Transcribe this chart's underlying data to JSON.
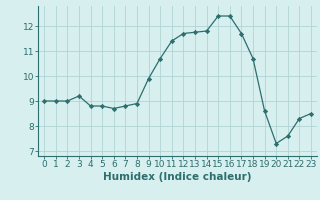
{
  "x": [
    0,
    1,
    2,
    3,
    4,
    5,
    6,
    7,
    8,
    9,
    10,
    11,
    12,
    13,
    14,
    15,
    16,
    17,
    18,
    19,
    20,
    21,
    22,
    23
  ],
  "y": [
    9.0,
    9.0,
    9.0,
    9.2,
    8.8,
    8.8,
    8.7,
    8.8,
    8.9,
    9.9,
    10.7,
    11.4,
    11.7,
    11.75,
    11.8,
    12.4,
    12.4,
    11.7,
    10.7,
    8.6,
    7.3,
    7.6,
    8.3,
    8.5
  ],
  "line_color": "#2d6e6e",
  "marker": "D",
  "marker_size": 2.2,
  "bg_color": "#d8efef",
  "grid_color": "#b0d4d4",
  "xlabel": "Humidex (Indice chaleur)",
  "xlabel_fontsize": 7.5,
  "tick_fontsize": 6.5,
  "ylim": [
    6.8,
    12.8
  ],
  "xlim": [
    -0.5,
    23.5
  ],
  "yticks": [
    7,
    8,
    9,
    10,
    11,
    12
  ],
  "xticks": [
    0,
    1,
    2,
    3,
    4,
    5,
    6,
    7,
    8,
    9,
    10,
    11,
    12,
    13,
    14,
    15,
    16,
    17,
    18,
    19,
    20,
    21,
    22,
    23
  ]
}
